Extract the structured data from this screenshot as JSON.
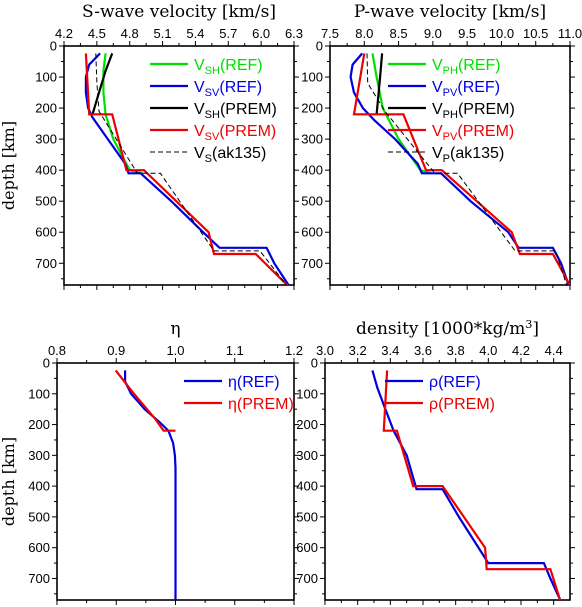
{
  "chart_data": [
    {
      "type": "line",
      "title": "S-wave velocity [km/s]",
      "ylabel": "depth [km]",
      "xlim": [
        4.2,
        6.3
      ],
      "ylim": [
        0,
        770
      ],
      "xticks": [
        "4.2",
        "4.5",
        "4.8",
        "5.1",
        "5.4",
        "5.7",
        "6.0",
        "6.3"
      ],
      "yticks": [
        "0",
        "100",
        "200",
        "300",
        "400",
        "500",
        "600",
        "700"
      ],
      "legend_position": "top-right",
      "series": [
        {
          "name": "V_SH(REF)",
          "label_main": "V",
          "label_sub": "SH",
          "label_rest": "(REF)",
          "color": "#00e000",
          "dash": false,
          "depth": [
            24,
            80,
            150,
            220,
            300,
            400,
            410
          ],
          "values": [
            4.58,
            4.56,
            4.56,
            4.58,
            4.65,
            4.8,
            4.92
          ]
        },
        {
          "name": "V_SV(REF)",
          "label_main": "V",
          "label_sub": "SV",
          "label_rest": "(REF)",
          "color": "#0000dd",
          "dash": false,
          "depth": [
            24,
            60,
            100,
            150,
            200,
            230,
            300,
            380,
            410,
            410,
            500,
            600,
            650,
            650,
            700,
            770
          ],
          "values": [
            4.53,
            4.43,
            4.4,
            4.4,
            4.42,
            4.46,
            4.6,
            4.76,
            4.79,
            4.9,
            5.18,
            5.47,
            5.62,
            6.05,
            6.12,
            6.25
          ]
        },
        {
          "name": "V_SH(PREM)",
          "label_main": "V",
          "label_sub": "SH",
          "label_rest": "(PREM)",
          "color": "#000000",
          "dash": false,
          "depth": [
            24,
            80,
            150,
            220
          ],
          "values": [
            4.64,
            4.58,
            4.52,
            4.46
          ]
        },
        {
          "name": "V_SV(PREM)",
          "label_main": "V",
          "label_sub": "SV",
          "label_rest": "(PREM)",
          "color": "#ee0000",
          "dash": false,
          "depth": [
            24,
            220,
            220,
            400,
            400,
            600,
            670,
            670,
            771
          ],
          "values": [
            4.4,
            4.43,
            4.64,
            4.77,
            4.93,
            5.52,
            5.57,
            5.95,
            6.24
          ]
        },
        {
          "name": "V_S(ak135)",
          "label_main": "V",
          "label_sub": "S",
          "label_rest": "(ak135)",
          "color": "#000000",
          "dash": true,
          "depth": [
            24,
            120,
            210,
            210,
            410,
            410,
            660,
            660,
            770
          ],
          "values": [
            4.49,
            4.5,
            4.52,
            4.52,
            4.87,
            5.08,
            5.57,
            5.99,
            6.23
          ]
        }
      ]
    },
    {
      "type": "line",
      "title": "P-wave velocity [km/s]",
      "ylabel": "",
      "xlim": [
        7.5,
        11.0
      ],
      "ylim": [
        0,
        770
      ],
      "xticks": [
        "7.5",
        "8.0",
        "8.5",
        "9.0",
        "9.5",
        "10.0",
        "10.5",
        "11.0"
      ],
      "yticks": [
        "0",
        "100",
        "200",
        "300",
        "400",
        "500",
        "600",
        "700"
      ],
      "legend_position": "top-right",
      "series": [
        {
          "name": "V_PH(REF)",
          "label_main": "V",
          "label_sub": "PH",
          "label_rest": "(REF)",
          "color": "#00e000",
          "dash": false,
          "depth": [
            24,
            100,
            200,
            300,
            400,
            410
          ],
          "values": [
            8.12,
            8.18,
            8.27,
            8.5,
            8.82,
            8.98
          ]
        },
        {
          "name": "V_PV(REF)",
          "label_main": "V",
          "label_sub": "PV",
          "label_rest": "(REF)",
          "color": "#0000dd",
          "dash": false,
          "depth": [
            24,
            60,
            100,
            150,
            200,
            240,
            300,
            380,
            410,
            410,
            500,
            600,
            650,
            650,
            700,
            770
          ],
          "values": [
            7.97,
            7.83,
            7.8,
            7.85,
            7.98,
            8.15,
            8.45,
            8.78,
            8.84,
            9.12,
            9.55,
            10.1,
            10.25,
            10.75,
            10.87,
            10.98
          ]
        },
        {
          "name": "V_PH(PREM)",
          "label_main": "V",
          "label_sub": "PH",
          "label_rest": "(PREM)",
          "color": "#000000",
          "dash": false,
          "depth": [
            24,
            100,
            220
          ],
          "values": [
            8.26,
            8.23,
            8.18
          ]
        },
        {
          "name": "V_PV(PREM)",
          "label_main": "V",
          "label_sub": "PV",
          "label_rest": "(PREM)",
          "color": "#ee0000",
          "dash": false,
          "depth": [
            24,
            220,
            220,
            400,
            400,
            600,
            670,
            670,
            771
          ],
          "values": [
            8.0,
            7.85,
            8.57,
            8.9,
            9.13,
            10.15,
            10.27,
            10.75,
            11.0
          ]
        },
        {
          "name": "V_P(ak135)",
          "label_main": "V",
          "label_sub": "P",
          "label_rest": "(ak135)",
          "color": "#000000",
          "dash": true,
          "depth": [
            24,
            120,
            210,
            210,
            410,
            410,
            660,
            660,
            770
          ],
          "values": [
            8.04,
            8.05,
            8.3,
            8.3,
            9.03,
            9.36,
            10.2,
            10.79,
            10.95
          ]
        }
      ]
    },
    {
      "type": "line",
      "title": "η",
      "ylabel": "depth [km]",
      "xlim": [
        0.8,
        1.2
      ],
      "ylim": [
        0,
        770
      ],
      "xticks": [
        "0.8",
        "0.9",
        "1.0",
        "1.1",
        "1.2"
      ],
      "yticks": [
        "0",
        "100",
        "200",
        "300",
        "400",
        "500",
        "600",
        "700"
      ],
      "legend_position": "top-right",
      "series": [
        {
          "name": "η(REF)",
          "label_main": "η(REF)",
          "label_sub": "",
          "label_rest": "",
          "color": "#0000dd",
          "dash": false,
          "depth": [
            24,
            60,
            100,
            150,
            190,
            220,
            260,
            300,
            340,
            770
          ],
          "values": [
            0.915,
            0.915,
            0.925,
            0.948,
            0.972,
            0.988,
            0.996,
            0.999,
            1.0,
            1.0
          ]
        },
        {
          "name": "η(PREM)",
          "label_main": "η(PREM)",
          "label_sub": "",
          "label_rest": "",
          "color": "#ee0000",
          "dash": false,
          "depth": [
            24,
            100,
            180,
            220,
            220
          ],
          "values": [
            0.899,
            0.93,
            0.965,
            0.98,
            1.0
          ]
        }
      ]
    },
    {
      "type": "line",
      "title": "density [1000*kg/m3]",
      "title_main": "density [1000*kg/m",
      "title_sup": "3",
      "title_end": "]",
      "ylabel": "",
      "xlim": [
        3.0,
        4.5
      ],
      "ylim": [
        0,
        770
      ],
      "xticks": [
        "3.0",
        "3.2",
        "3.4",
        "3.6",
        "3.8",
        "4.0",
        "4.2",
        "4.4"
      ],
      "yticks": [
        "0",
        "100",
        "200",
        "300",
        "400",
        "500",
        "600",
        "700"
      ],
      "legend_position": "top-right",
      "series": [
        {
          "name": "ρ(REF)",
          "label_main": "ρ(REF)",
          "label_sub": "",
          "label_rest": "",
          "color": "#0000dd",
          "dash": false,
          "depth": [
            24,
            80,
            150,
            220,
            300,
            410,
            410,
            500,
            650,
            650,
            700,
            770
          ],
          "values": [
            3.29,
            3.32,
            3.37,
            3.42,
            3.5,
            3.56,
            3.72,
            3.82,
            4.0,
            4.34,
            4.38,
            4.44
          ]
        },
        {
          "name": "ρ(PREM)",
          "label_main": "ρ(PREM)",
          "label_sub": "",
          "label_rest": "",
          "color": "#ee0000",
          "dash": false,
          "depth": [
            24,
            220,
            220,
            400,
            400,
            600,
            670,
            670,
            771
          ],
          "values": [
            3.38,
            3.36,
            3.44,
            3.54,
            3.72,
            3.98,
            3.99,
            4.38,
            4.44
          ]
        }
      ]
    }
  ]
}
